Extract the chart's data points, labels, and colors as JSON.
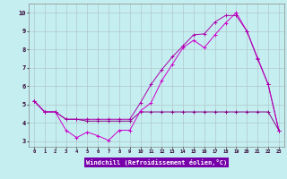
{
  "title": "",
  "xlabel": "Windchill (Refroidissement éolien,°C)",
  "bg_color": "#c5eef0",
  "grid_color": "#b0c8cc",
  "line_color1": "#880088",
  "line_color2": "#cc00cc",
  "line_color3": "#aa00aa",
  "xlabel_bg": "#7700aa",
  "xlabel_fg": "#ffffff",
  "xlim_left": -0.5,
  "xlim_right": 23.5,
  "ylim_bottom": 2.7,
  "ylim_top": 10.5,
  "x_ticks": [
    0,
    1,
    2,
    3,
    4,
    5,
    6,
    7,
    8,
    9,
    10,
    11,
    12,
    13,
    14,
    15,
    16,
    17,
    18,
    19,
    20,
    21,
    22,
    23
  ],
  "y_ticks": [
    3,
    4,
    5,
    6,
    7,
    8,
    9,
    10
  ],
  "line1_x": [
    0,
    1,
    2,
    3,
    4,
    5,
    6,
    7,
    8,
    9,
    10,
    11,
    12,
    13,
    14,
    15,
    16,
    17,
    18,
    19,
    20,
    21,
    22,
    23
  ],
  "line1_y": [
    5.2,
    4.6,
    4.6,
    4.2,
    4.2,
    4.1,
    4.1,
    4.1,
    4.1,
    4.1,
    4.6,
    4.6,
    4.6,
    4.6,
    4.6,
    4.6,
    4.6,
    4.6,
    4.6,
    4.6,
    4.6,
    4.6,
    4.6,
    3.6
  ],
  "line2_x": [
    0,
    1,
    2,
    3,
    4,
    5,
    6,
    7,
    8,
    9,
    10,
    11,
    12,
    13,
    14,
    15,
    16,
    17,
    18,
    19,
    20,
    21,
    22,
    23
  ],
  "line2_y": [
    5.2,
    4.6,
    4.6,
    3.6,
    3.2,
    3.5,
    3.3,
    3.05,
    3.6,
    3.6,
    4.65,
    5.1,
    6.3,
    7.2,
    8.1,
    8.5,
    8.1,
    8.8,
    9.45,
    10.0,
    9.0,
    7.55,
    6.1,
    3.6
  ],
  "line3_x": [
    0,
    1,
    2,
    3,
    4,
    5,
    6,
    7,
    8,
    9,
    10,
    11,
    12,
    13,
    14,
    15,
    16,
    17,
    18,
    19,
    20,
    21,
    22,
    23
  ],
  "line3_y": [
    5.2,
    4.6,
    4.6,
    4.2,
    4.2,
    4.2,
    4.2,
    4.2,
    4.2,
    4.2,
    5.1,
    6.1,
    6.9,
    7.6,
    8.2,
    8.8,
    8.85,
    9.5,
    9.85,
    9.85,
    9.0,
    7.5,
    6.1,
    3.6
  ]
}
